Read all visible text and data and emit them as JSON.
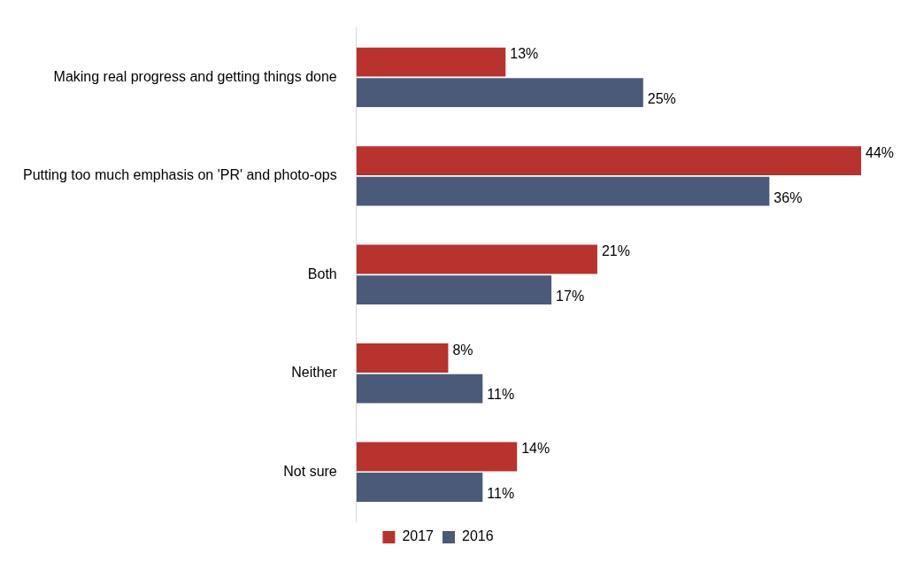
{
  "chart_data": {
    "type": "bar",
    "orientation": "horizontal",
    "categories": [
      "Making real progress and getting things done",
      "Putting too much emphasis on 'PR' and photo-ops",
      "Both",
      "Neither",
      "Not sure"
    ],
    "series": [
      {
        "name": "2017",
        "color": "#b8322e",
        "values": [
          13,
          44,
          21,
          8,
          14
        ],
        "value_labels": [
          "13%",
          "44%",
          "21%",
          "8%",
          "14%"
        ]
      },
      {
        "name": "2016",
        "color": "#4b5a78",
        "values": [
          25,
          36,
          17,
          11,
          11
        ],
        "value_labels": [
          "25%",
          "36%",
          "17%",
          "11%",
          "11%"
        ]
      }
    ],
    "grid": false,
    "legend": "bottom",
    "tick_labels": "y"
  }
}
